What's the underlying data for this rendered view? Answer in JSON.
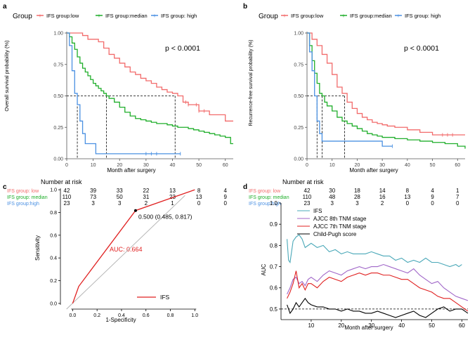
{
  "colors": {
    "low": "#f26b6b",
    "median": "#1fae2a",
    "high": "#4a90e2",
    "black": "#000000",
    "gray": "#9a9a9a",
    "teal": "#4aa8b8",
    "purple": "#a066c8",
    "red": "#e02020"
  },
  "chart_data": [
    {
      "panel": "a",
      "type": "line",
      "subtype": "kaplan-meier",
      "legend_title": "Group",
      "legend": [
        "IFS group:low",
        "IFS group:median",
        "IFS group: high"
      ],
      "ylabel": "Overall survival probability (%)",
      "xlabel": "Month after surgery",
      "pvalue": "p < 0.0001",
      "xlim": [
        0,
        63
      ],
      "ylim": [
        0,
        1
      ],
      "xticks": [
        0,
        10,
        20,
        30,
        40,
        50,
        60
      ],
      "yticks": [
        "0.00",
        "0.25",
        "0.50",
        "0.75",
        "1.00"
      ],
      "median_times": [
        4,
        15,
        41
      ],
      "series": [
        {
          "name": "IFS group:low",
          "color": "#f26b6b",
          "x": [
            0,
            4,
            6,
            8,
            10,
            12,
            14,
            16,
            18,
            20,
            22,
            24,
            26,
            28,
            30,
            32,
            34,
            36,
            38,
            40,
            42,
            44,
            46,
            48,
            50,
            52,
            54,
            56,
            58,
            60,
            63
          ],
          "y": [
            1.0,
            1.0,
            0.98,
            0.95,
            0.95,
            0.93,
            0.88,
            0.83,
            0.8,
            0.76,
            0.73,
            0.69,
            0.67,
            0.64,
            0.62,
            0.6,
            0.57,
            0.55,
            0.53,
            0.52,
            0.5,
            0.45,
            0.43,
            0.43,
            0.38,
            0.38,
            0.35,
            0.35,
            0.35,
            0.3,
            0.3
          ]
        },
        {
          "name": "IFS group:median",
          "color": "#1fae2a",
          "x": [
            0,
            1,
            2,
            3,
            4,
            5,
            6,
            7,
            8,
            9,
            10,
            11,
            12,
            13,
            14,
            15,
            16,
            18,
            20,
            22,
            24,
            26,
            28,
            30,
            32,
            34,
            36,
            38,
            40,
            42,
            44,
            46,
            48,
            50,
            52,
            54,
            56,
            58,
            60,
            62,
            63
          ],
          "y": [
            1.0,
            0.97,
            0.92,
            0.87,
            0.81,
            0.76,
            0.72,
            0.69,
            0.66,
            0.63,
            0.6,
            0.58,
            0.56,
            0.54,
            0.52,
            0.5,
            0.48,
            0.45,
            0.41,
            0.37,
            0.34,
            0.32,
            0.31,
            0.3,
            0.29,
            0.28,
            0.28,
            0.27,
            0.26,
            0.25,
            0.25,
            0.24,
            0.23,
            0.22,
            0.21,
            0.2,
            0.19,
            0.18,
            0.17,
            0.12,
            0.12
          ]
        },
        {
          "name": "IFS group: high",
          "color": "#4a90e2",
          "x": [
            0,
            1,
            2,
            3,
            4,
            5,
            6,
            7,
            9,
            11,
            15,
            20,
            25,
            30,
            35,
            40,
            43
          ],
          "y": [
            1.0,
            0.9,
            0.7,
            0.52,
            0.43,
            0.3,
            0.2,
            0.12,
            0.12,
            0.04,
            0.04,
            0.04,
            0.04,
            0.04,
            0.04,
            0.04,
            0.04
          ]
        }
      ],
      "censor_marks": [
        {
          "series": 0,
          "x": [
            45,
            46,
            49,
            50,
            52
          ]
        },
        {
          "series": 2,
          "x": [
            30,
            32,
            34,
            43
          ]
        }
      ],
      "risk_table": {
        "title": "Number at risk",
        "rows": [
          {
            "label": "IFS group: low",
            "color": "#f26b6b",
            "values": [
              "42",
              "39",
              "33",
              "22",
              "13",
              "8",
              "4"
            ]
          },
          {
            "label": "IFS group: median",
            "color": "#1fae2a",
            "values": [
              "110",
              "73",
              "50",
              "31",
              "23",
              "13",
              "9"
            ]
          },
          {
            "label": "IFS group:high",
            "color": "#4a90e2",
            "values": [
              "23",
              "3",
              "3",
              "2",
              "1",
              "0",
              "0"
            ]
          }
        ]
      }
    },
    {
      "panel": "b",
      "type": "line",
      "subtype": "kaplan-meier",
      "legend_title": "Group",
      "legend": [
        "IFS group:low",
        "IFS group:median",
        "IFS group: high"
      ],
      "ylabel": "Recurrence-free survival probability (%)",
      "xlabel": "Month after surgery",
      "pvalue": "p < 0.0001",
      "xlim": [
        0,
        63
      ],
      "ylim": [
        0,
        1
      ],
      "xticks": [
        0,
        10,
        20,
        30,
        40,
        50,
        60
      ],
      "yticks": [
        "0.00",
        "0.25",
        "0.50",
        "0.75",
        "1.00"
      ],
      "median_times": [
        4,
        6,
        15
      ],
      "series": [
        {
          "name": "IFS group:low",
          "color": "#f26b6b",
          "x": [
            0,
            2,
            4,
            6,
            8,
            10,
            12,
            14,
            16,
            18,
            20,
            22,
            24,
            26,
            28,
            30,
            32,
            35,
            40,
            45,
            50,
            55,
            60,
            63
          ],
          "y": [
            1.0,
            0.95,
            0.9,
            0.83,
            0.76,
            0.67,
            0.57,
            0.52,
            0.45,
            0.4,
            0.36,
            0.33,
            0.31,
            0.29,
            0.28,
            0.27,
            0.26,
            0.25,
            0.23,
            0.21,
            0.19,
            0.19,
            0.19,
            0.19
          ]
        },
        {
          "name": "IFS group:median",
          "color": "#1fae2a",
          "x": [
            0,
            1,
            2,
            3,
            4,
            5,
            6,
            7,
            8,
            10,
            12,
            14,
            16,
            18,
            20,
            22,
            24,
            26,
            28,
            30,
            35,
            40,
            45,
            50,
            55,
            60,
            63
          ],
          "y": [
            1.0,
            0.9,
            0.78,
            0.68,
            0.6,
            0.52,
            0.5,
            0.45,
            0.42,
            0.38,
            0.33,
            0.3,
            0.28,
            0.26,
            0.24,
            0.22,
            0.2,
            0.19,
            0.18,
            0.17,
            0.16,
            0.15,
            0.14,
            0.13,
            0.12,
            0.1,
            0.08
          ]
        },
        {
          "name": "IFS group: high",
          "color": "#4a90e2",
          "x": [
            0,
            1,
            2,
            3,
            4,
            5,
            6,
            8,
            10,
            15,
            20,
            25,
            30,
            34
          ],
          "y": [
            1.0,
            0.85,
            0.7,
            0.5,
            0.3,
            0.2,
            0.14,
            0.14,
            0.14,
            0.14,
            0.14,
            0.14,
            0.1,
            0.1
          ]
        }
      ],
      "censor_marks": [
        {
          "series": 0,
          "x": [
            54,
            56,
            58
          ]
        },
        {
          "series": 2,
          "x": [
            34
          ]
        }
      ],
      "risk_table": {
        "title": "Number at risk",
        "rows": [
          {
            "label": "IFS group: low",
            "color": "#f26b6b",
            "values": [
              "42",
              "30",
              "18",
              "14",
              "8",
              "4",
              "1"
            ]
          },
          {
            "label": "IFS group: median",
            "color": "#1fae2a",
            "values": [
              "110",
              "48",
              "28",
              "16",
              "13",
              "9",
              "7"
            ]
          },
          {
            "label": "IFS group:high",
            "color": "#4a90e2",
            "values": [
              "23",
              "3",
              "3",
              "2",
              "0",
              "0",
              "0"
            ]
          }
        ]
      }
    },
    {
      "panel": "c",
      "type": "line",
      "subtype": "roc",
      "xlabel": "1-Specificity",
      "ylabel": "Sensitivity",
      "xlim": [
        -0.1,
        1.05
      ],
      "ylim": [
        -0.05,
        1.05
      ],
      "xticks": [
        "0.0",
        "0.2",
        "0.4",
        "0.6",
        "0.8",
        "1.0"
      ],
      "yticks": [
        "0.0",
        "0.2",
        "0.4",
        "0.6",
        "0.8",
        "1.0"
      ],
      "roc": {
        "x": [
          0,
          0.05,
          0.515,
          1.0
        ],
        "y": [
          0,
          0.15,
          0.817,
          1.0
        ]
      },
      "diagonal": {
        "x": [
          -0.05,
          0.92
        ],
        "y": [
          -0.05,
          0.95
        ]
      },
      "cutoff_point": {
        "x": 0.515,
        "y": 0.817,
        "label": "0.500 (0.485, 0.817)"
      },
      "auc_label": "AUC: 0.664",
      "legend": [
        "IFS"
      ]
    },
    {
      "panel": "d",
      "type": "line",
      "subtype": "time-dependent-auc",
      "xlabel": "Month after surgery",
      "ylabel": "AUC",
      "xlim": [
        0,
        62
      ],
      "ylim": [
        0.45,
        1.0
      ],
      "xticks": [
        "10",
        "20",
        "30",
        "40",
        "50",
        "60"
      ],
      "yticks": [
        "0.5",
        "0.6",
        "0.7",
        "0.8",
        "0.9",
        "1.0"
      ],
      "reference_line": 0.5,
      "series": [
        {
          "name": "IFS",
          "color": "#4aa8b8",
          "x": [
            2,
            2.5,
            3,
            4,
            5,
            6,
            7,
            8,
            9,
            10,
            12,
            14,
            16,
            18,
            20,
            22,
            24,
            26,
            28,
            30,
            32,
            34,
            36,
            38,
            40,
            42,
            44,
            46,
            48,
            50,
            52,
            54,
            56,
            58,
            59,
            60
          ],
          "y": [
            0.83,
            0.73,
            0.72,
            0.82,
            0.84,
            0.85,
            0.83,
            0.79,
            0.8,
            0.81,
            0.79,
            0.8,
            0.77,
            0.78,
            0.76,
            0.77,
            0.76,
            0.76,
            0.76,
            0.77,
            0.76,
            0.75,
            0.75,
            0.73,
            0.74,
            0.72,
            0.73,
            0.72,
            0.74,
            0.72,
            0.72,
            0.71,
            0.7,
            0.71,
            0.7,
            0.71
          ]
        },
        {
          "name": "AJCC 8th TNM stage",
          "color": "#a066c8",
          "x": [
            2,
            3,
            4,
            5,
            6,
            7,
            8,
            9,
            10,
            12,
            14,
            16,
            18,
            20,
            22,
            24,
            26,
            28,
            30,
            32,
            34,
            36,
            38,
            40,
            42,
            44,
            46,
            48,
            50,
            52,
            54,
            56,
            58,
            60,
            62
          ],
          "y": [
            0.57,
            0.6,
            0.64,
            0.65,
            0.62,
            0.63,
            0.61,
            0.64,
            0.65,
            0.63,
            0.66,
            0.68,
            0.67,
            0.66,
            0.68,
            0.69,
            0.7,
            0.69,
            0.7,
            0.7,
            0.71,
            0.7,
            0.69,
            0.68,
            0.67,
            0.69,
            0.66,
            0.64,
            0.62,
            0.63,
            0.6,
            0.58,
            0.56,
            0.55,
            0.54
          ]
        },
        {
          "name": "AJCC 7th TNM stage",
          "color": "#e02020",
          "x": [
            2,
            3,
            4,
            5,
            6,
            7,
            8,
            9,
            10,
            12,
            14,
            16,
            18,
            20,
            22,
            24,
            26,
            28,
            30,
            32,
            34,
            36,
            38,
            40,
            42,
            44,
            46,
            48,
            50,
            52,
            54,
            56,
            58,
            60,
            62
          ],
          "y": [
            0.55,
            0.58,
            0.62,
            0.68,
            0.6,
            0.62,
            0.59,
            0.62,
            0.62,
            0.6,
            0.63,
            0.65,
            0.64,
            0.63,
            0.65,
            0.66,
            0.67,
            0.66,
            0.67,
            0.67,
            0.66,
            0.66,
            0.65,
            0.64,
            0.64,
            0.62,
            0.6,
            0.59,
            0.58,
            0.56,
            0.55,
            0.55,
            0.53,
            0.51,
            0.49
          ]
        },
        {
          "name": "Child-Pugh score",
          "color": "#000000",
          "x": [
            2,
            3,
            4,
            5,
            6,
            7,
            8,
            9,
            10,
            12,
            14,
            16,
            18,
            20,
            22,
            24,
            26,
            28,
            30,
            32,
            34,
            36,
            38,
            40,
            42,
            44,
            46,
            48,
            50,
            52,
            54,
            56,
            58,
            60,
            62
          ],
          "y": [
            0.52,
            0.48,
            0.5,
            0.53,
            0.51,
            0.53,
            0.55,
            0.53,
            0.52,
            0.51,
            0.51,
            0.5,
            0.5,
            0.49,
            0.5,
            0.49,
            0.49,
            0.48,
            0.48,
            0.49,
            0.48,
            0.47,
            0.46,
            0.47,
            0.48,
            0.49,
            0.47,
            0.46,
            0.48,
            0.5,
            0.51,
            0.49,
            0.5,
            0.5,
            0.48
          ]
        }
      ],
      "legend": [
        "IFS",
        "AJCC 8th TNM stage",
        "AJCC 7th TNM stage",
        "Child-Pugh score"
      ]
    }
  ]
}
